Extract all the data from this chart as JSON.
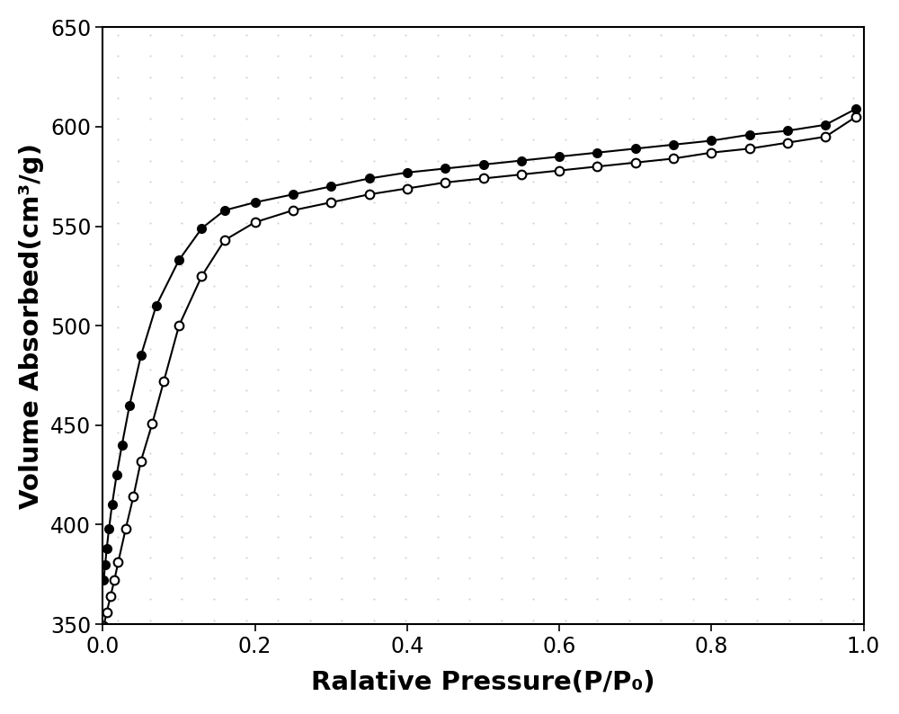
{
  "adsorption_x": [
    0.001,
    0.003,
    0.005,
    0.008,
    0.012,
    0.018,
    0.025,
    0.035,
    0.05,
    0.07,
    0.1,
    0.13,
    0.16,
    0.2,
    0.25,
    0.3,
    0.35,
    0.4,
    0.45,
    0.5,
    0.55,
    0.6,
    0.65,
    0.7,
    0.75,
    0.8,
    0.85,
    0.9,
    0.95,
    0.99
  ],
  "adsorption_y": [
    372,
    380,
    388,
    398,
    410,
    425,
    440,
    460,
    485,
    510,
    533,
    549,
    558,
    562,
    566,
    570,
    574,
    577,
    579,
    581,
    583,
    585,
    587,
    589,
    591,
    593,
    596,
    598,
    601,
    609
  ],
  "desorption_x": [
    0.001,
    0.005,
    0.01,
    0.015,
    0.02,
    0.03,
    0.04,
    0.05,
    0.065,
    0.08,
    0.1,
    0.13,
    0.16,
    0.2,
    0.25,
    0.3,
    0.35,
    0.4,
    0.45,
    0.5,
    0.55,
    0.6,
    0.65,
    0.7,
    0.75,
    0.8,
    0.85,
    0.9,
    0.95,
    0.99
  ],
  "desorption_y": [
    349,
    356,
    364,
    372,
    381,
    398,
    414,
    432,
    451,
    472,
    500,
    525,
    543,
    552,
    558,
    562,
    566,
    569,
    572,
    574,
    576,
    578,
    580,
    582,
    584,
    587,
    589,
    592,
    595,
    605
  ],
  "xlabel": "Ralative Pressure(P/P₀)",
  "ylabel": "Volume Absorbed(cm³/g)",
  "xlim": [
    0.0,
    1.0
  ],
  "ylim": [
    350,
    650
  ],
  "xticks": [
    0.0,
    0.2,
    0.4,
    0.6,
    0.8,
    1.0
  ],
  "yticks": [
    350,
    400,
    450,
    500,
    550,
    600,
    650
  ],
  "line_color": "#000000",
  "marker_size": 7,
  "line_width": 1.5,
  "background_color": "#ffffff",
  "plot_bg_color": "#ffffff",
  "tick_label_fontsize": 17,
  "axis_label_fontsize": 21
}
